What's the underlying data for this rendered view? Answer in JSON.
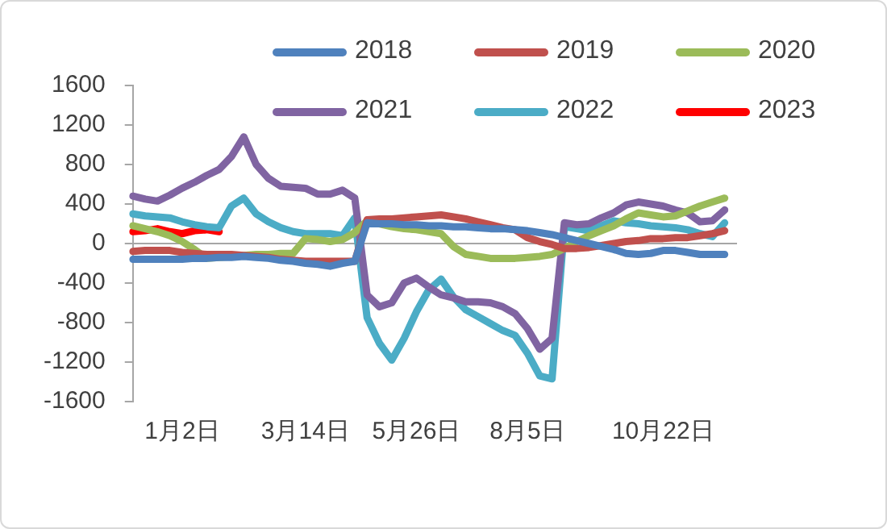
{
  "chart_data": {
    "type": "line",
    "legend": "top",
    "grid": false,
    "marker": "none",
    "line_style": "solid",
    "categories": [
      null,
      null,
      null,
      null,
      "1月2日",
      null,
      null,
      null,
      null,
      null,
      null,
      null,
      null,
      null,
      "3月14日",
      null,
      null,
      null,
      null,
      null,
      null,
      null,
      null,
      "5月26日",
      null,
      null,
      null,
      null,
      null,
      null,
      null,
      null,
      "8月5日",
      null,
      null,
      null,
      null,
      null,
      null,
      null,
      null,
      null,
      null,
      "10月22日",
      null,
      null,
      null,
      null,
      null,
      null
    ],
    "ref_lines": [
      {
        "axis": "y",
        "value": 0,
        "color": "#a6a6a6"
      }
    ],
    "ylim": [
      -1600,
      1600
    ],
    "yticks": [
      -1600,
      -1200,
      -800,
      -400,
      0,
      400,
      800,
      1200,
      1600
    ],
    "series": [
      {
        "name": "2018",
        "color": "#4f81bd",
        "values": [
          -160,
          -160,
          -160,
          -160,
          -160,
          -150,
          -150,
          -140,
          -140,
          -130,
          -140,
          -150,
          -170,
          -180,
          -200,
          -210,
          -230,
          -200,
          -180,
          210,
          200,
          200,
          190,
          190,
          180,
          180,
          170,
          170,
          160,
          150,
          150,
          140,
          130,
          110,
          90,
          60,
          30,
          0,
          -30,
          -60,
          -100,
          -110,
          -100,
          -70,
          -70,
          -90,
          -110,
          -110,
          -110,
          null
        ]
      },
      {
        "name": "2019",
        "color": "#c0504d",
        "values": [
          -80,
          -70,
          -70,
          -70,
          -90,
          -100,
          -110,
          -110,
          -110,
          -120,
          -130,
          -140,
          -160,
          -170,
          -180,
          -180,
          -180,
          -180,
          -180,
          240,
          250,
          250,
          260,
          270,
          280,
          290,
          270,
          250,
          220,
          190,
          160,
          140,
          60,
          20,
          -10,
          -50,
          -50,
          -40,
          -20,
          0,
          20,
          30,
          50,
          50,
          60,
          60,
          80,
          100,
          130,
          null
        ]
      },
      {
        "name": "2020",
        "color": "#9bbb59",
        "values": [
          180,
          150,
          120,
          80,
          20,
          -60,
          -150,
          -140,
          -130,
          -120,
          -110,
          -110,
          -100,
          -100,
          50,
          40,
          20,
          40,
          110,
          230,
          200,
          170,
          150,
          140,
          120,
          100,
          -30,
          -110,
          -130,
          -150,
          -150,
          -150,
          -140,
          -130,
          -110,
          -50,
          20,
          80,
          130,
          180,
          250,
          310,
          290,
          270,
          280,
          330,
          380,
          420,
          460,
          null
        ]
      },
      {
        "name": "2021",
        "color": "#8064a2",
        "values": [
          480,
          450,
          430,
          490,
          560,
          620,
          690,
          750,
          880,
          1080,
          800,
          660,
          580,
          570,
          560,
          500,
          500,
          540,
          460,
          -520,
          -640,
          -600,
          -400,
          -350,
          -440,
          -520,
          -550,
          -590,
          -590,
          -600,
          -640,
          -710,
          -860,
          -1070,
          -960,
          210,
          190,
          200,
          260,
          310,
          390,
          420,
          400,
          380,
          340,
          310,
          220,
          230,
          340,
          null
        ]
      },
      {
        "name": "2022",
        "color": "#4bacc6",
        "values": [
          300,
          280,
          270,
          260,
          220,
          190,
          170,
          160,
          380,
          460,
          300,
          220,
          160,
          120,
          100,
          100,
          100,
          80,
          260,
          -750,
          -1010,
          -1180,
          -960,
          -690,
          -470,
          -360,
          -540,
          -670,
          -740,
          -810,
          -880,
          -930,
          -1110,
          -1340,
          -1370,
          170,
          150,
          130,
          180,
          230,
          210,
          200,
          180,
          170,
          160,
          140,
          100,
          70,
          210,
          null
        ]
      },
      {
        "name": "2023",
        "color": "#ff0000",
        "values": [
          120,
          130,
          150,
          120,
          100,
          130,
          140,
          120,
          null,
          null,
          null,
          null,
          null,
          null,
          null,
          null,
          null,
          null,
          null,
          null,
          null,
          null,
          null,
          null,
          null,
          null,
          null,
          null,
          null,
          null,
          null,
          null,
          null,
          null,
          null,
          null,
          null,
          null,
          null,
          null,
          null,
          null,
          null,
          null,
          null,
          null,
          null,
          null,
          null,
          null
        ]
      }
    ]
  }
}
